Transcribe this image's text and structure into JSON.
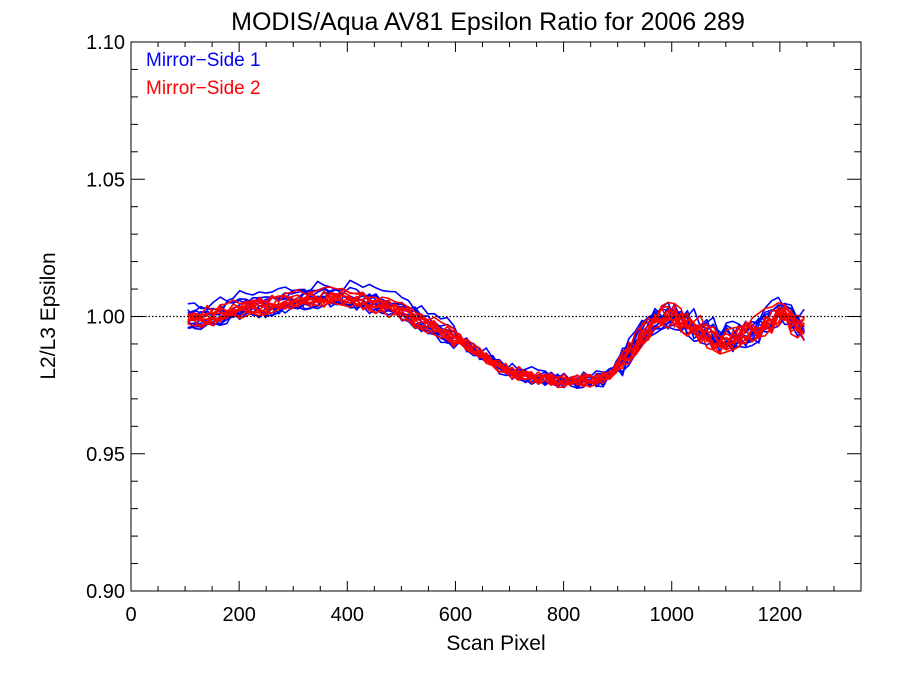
{
  "chart_data": {
    "type": "line",
    "title": "MODIS/Aqua AV81 Epsilon Ratio for 2006 289",
    "xlabel": "Scan Pixel",
    "ylabel": "L2/L3 Epsilon",
    "xlim": [
      0,
      1350
    ],
    "ylim": [
      0.9,
      1.1
    ],
    "x_ticks": [
      0,
      200,
      400,
      600,
      800,
      1000,
      1200
    ],
    "x_tick_labels": [
      "0",
      "200",
      "400",
      "600",
      "800",
      "1000",
      "1200"
    ],
    "y_ticks": [
      0.9,
      0.95,
      1.0,
      1.05,
      1.1
    ],
    "y_tick_labels": [
      "0.90",
      "0.95",
      "1.00",
      "1.05",
      "1.10"
    ],
    "reference_line": {
      "y": 1.0,
      "style": "dotted",
      "color": "#000000"
    },
    "legend_position": "top-left",
    "legend": [
      {
        "label": "Mirror−Side 1",
        "color": "#0000ff"
      },
      {
        "label": "Mirror−Side 2",
        "color": "#ff0000"
      }
    ],
    "mean_curve": {
      "x": [
        105,
        150,
        200,
        250,
        300,
        350,
        400,
        450,
        500,
        550,
        600,
        650,
        700,
        750,
        800,
        850,
        880,
        900,
        930,
        960,
        980,
        1000,
        1030,
        1060,
        1090,
        1120,
        1150,
        1180,
        1200,
        1230,
        1250
      ],
      "y": [
        1.0,
        1.001,
        1.004,
        1.005,
        1.007,
        1.008,
        1.008,
        1.006,
        1.003,
        0.998,
        0.993,
        0.986,
        0.98,
        0.978,
        0.977,
        0.977,
        0.978,
        0.983,
        0.99,
        0.998,
        1.001,
        1.002,
        0.998,
        0.995,
        0.992,
        0.994,
        0.996,
        0.999,
        1.003,
        0.998,
        0.997
      ]
    },
    "series": [
      {
        "name": "Mirror−Side 1",
        "color": "#0000ff",
        "curves": 10,
        "spread": 0.0035
      },
      {
        "name": "Mirror−Side 2",
        "color": "#ff0000",
        "curves": 10,
        "spread": 0.003
      }
    ]
  }
}
